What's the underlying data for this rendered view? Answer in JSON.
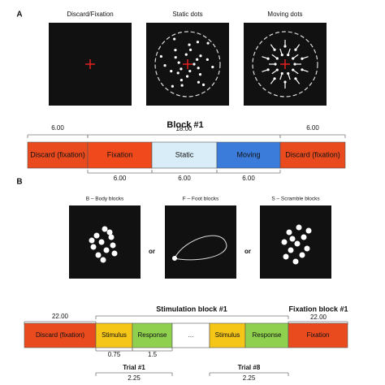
{
  "panel_a": {
    "label": "A",
    "screens": [
      "Discard/Fixation",
      "Static dots",
      "Moving dots"
    ],
    "timeline": {
      "title": "Block #1",
      "above": [
        "6.00",
        "18.00",
        "6.00"
      ],
      "boxes": [
        "Discard (fixation)",
        "Fixation",
        "Static",
        "Moving",
        "Discard (fixation)"
      ],
      "below": [
        "6.00",
        "6.00",
        "6.00"
      ]
    }
  },
  "panel_b": {
    "label": "B",
    "screens": [
      "B – Body blocks",
      "F – Foot blocks",
      "S – Scramble blocks"
    ],
    "separators": [
      "or",
      "or"
    ],
    "timeline": {
      "above_left": "22.00",
      "stimulation_title": "Stimulation block #1",
      "fixation_title": "Fixation block #1",
      "above_right": "22.00",
      "boxes": [
        "Discard (fixation)",
        "Stimulus",
        "Response",
        "...",
        "Stimulus",
        "Response",
        "Fixation"
      ],
      "below": [
        "0.75",
        "1.5"
      ],
      "trials": [
        {
          "title": "Trial #1",
          "duration": "2.25"
        },
        {
          "title": "Trial #8",
          "duration": "2.25"
        }
      ]
    }
  }
}
